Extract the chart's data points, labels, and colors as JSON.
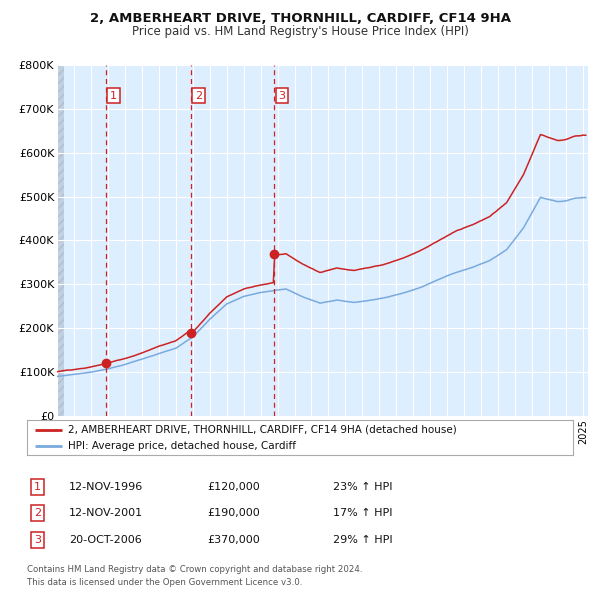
{
  "title": "2, AMBERHEART DRIVE, THORNHILL, CARDIFF, CF14 9HA",
  "subtitle": "Price paid vs. HM Land Registry's House Price Index (HPI)",
  "ylim": [
    0,
    800000
  ],
  "yticks": [
    0,
    100000,
    200000,
    300000,
    400000,
    500000,
    600000,
    700000,
    800000
  ],
  "ytick_labels": [
    "£0",
    "£100K",
    "£200K",
    "£300K",
    "£400K",
    "£500K",
    "£600K",
    "£700K",
    "£800K"
  ],
  "hpi_color": "#7aaadd",
  "price_color": "#cc2222",
  "vline_color": "#cc2222",
  "bg_color": "#ddeeff",
  "grid_color": "#ffffff",
  "sale1_date": 1996.87,
  "sale2_date": 2001.87,
  "sale3_date": 2006.8,
  "sale1_price": 120000,
  "sale2_price": 190000,
  "sale3_price": 370000,
  "legend_line1": "2, AMBERHEART DRIVE, THORNHILL, CARDIFF, CF14 9HA (detached house)",
  "legend_line2": "HPI: Average price, detached house, Cardiff",
  "table_row1": [
    "1",
    "12-NOV-1996",
    "£120,000",
    "23% ↑ HPI"
  ],
  "table_row2": [
    "2",
    "12-NOV-2001",
    "£190,000",
    "17% ↑ HPI"
  ],
  "table_row3": [
    "3",
    "20-OCT-2006",
    "£370,000",
    "29% ↑ HPI"
  ],
  "footer": "Contains HM Land Registry data © Crown copyright and database right 2024.\nThis data is licensed under the Open Government Licence v3.0."
}
